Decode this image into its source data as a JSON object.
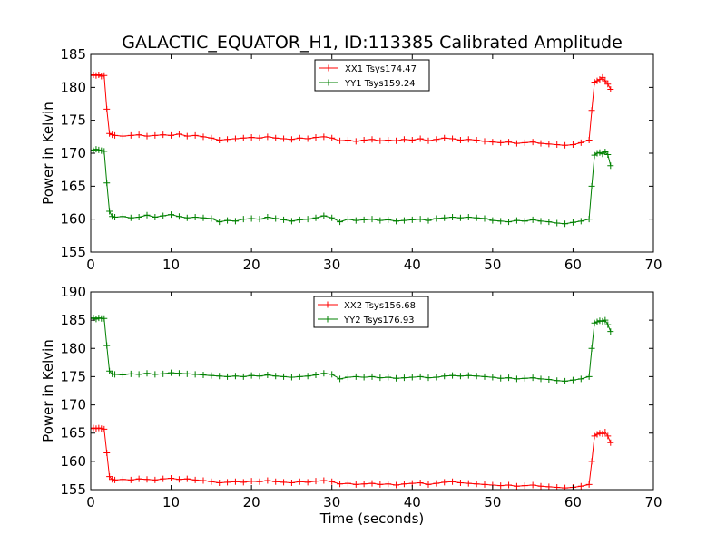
{
  "title": "GALACTIC_EQUATOR_H1, ID:113385 Calibrated Amplitude",
  "chart_data": [
    {
      "type": "line",
      "title": "GALACTIC_EQUATOR_H1, ID:113385 Calibrated Amplitude",
      "xlabel": "",
      "ylabel": "Power in Kelvin",
      "xlim": [
        0,
        70
      ],
      "ylim": [
        155,
        185
      ],
      "xticks": [
        "0",
        "10",
        "20",
        "30",
        "40",
        "50",
        "60",
        "70"
      ],
      "yticks": [
        "155",
        "160",
        "165",
        "170",
        "175",
        "180",
        "185"
      ],
      "grid": false,
      "legend": "top-center",
      "series": [
        {
          "name": "XX1 Tsys174.47",
          "color": "#ff0000",
          "x": [
            0.0,
            0.33,
            0.67,
            1.0,
            1.33,
            1.67,
            2.0,
            2.33,
            2.67,
            3.0,
            4.0,
            5.0,
            6.0,
            7.0,
            8.0,
            9.0,
            10.0,
            11.0,
            12.0,
            13.0,
            14.0,
            15.0,
            16.0,
            17.0,
            18.0,
            19.0,
            20.0,
            21.0,
            22.0,
            23.0,
            24.0,
            25.0,
            26.0,
            27.0,
            28.0,
            29.0,
            30.0,
            31.0,
            32.0,
            33.0,
            34.0,
            35.0,
            36.0,
            37.0,
            38.0,
            39.0,
            40.0,
            41.0,
            42.0,
            43.0,
            44.0,
            45.0,
            46.0,
            47.0,
            48.0,
            49.0,
            50.0,
            51.0,
            52.0,
            53.0,
            54.0,
            55.0,
            56.0,
            57.0,
            58.0,
            59.0,
            60.0,
            61.0,
            62.0,
            62.33,
            62.67,
            63.0,
            63.33,
            63.67,
            64.0,
            64.33,
            64.67
          ],
          "values": [
            181.8,
            181.9,
            181.8,
            181.9,
            181.7,
            181.8,
            176.7,
            173.0,
            172.8,
            172.7,
            172.6,
            172.7,
            172.8,
            172.6,
            172.7,
            172.8,
            172.7,
            172.9,
            172.6,
            172.7,
            172.5,
            172.3,
            172.0,
            172.1,
            172.2,
            172.3,
            172.4,
            172.3,
            172.5,
            172.3,
            172.2,
            172.1,
            172.3,
            172.2,
            172.4,
            172.5,
            172.3,
            171.9,
            172.0,
            171.8,
            172.0,
            172.1,
            171.9,
            172.0,
            171.9,
            172.1,
            172.0,
            172.2,
            171.9,
            172.1,
            172.3,
            172.2,
            172.0,
            172.1,
            172.0,
            171.8,
            171.7,
            171.6,
            171.7,
            171.5,
            171.6,
            171.7,
            171.5,
            171.4,
            171.3,
            171.2,
            171.3,
            171.6,
            172.0,
            176.5,
            180.8,
            181.0,
            181.2,
            181.5,
            181.0,
            180.5,
            179.7
          ]
        },
        {
          "name": "YY1 Tsys159.24",
          "color": "#008000",
          "x": [
            0.0,
            0.33,
            0.67,
            1.0,
            1.33,
            1.67,
            2.0,
            2.33,
            2.67,
            3.0,
            4.0,
            5.0,
            6.0,
            7.0,
            8.0,
            9.0,
            10.0,
            11.0,
            12.0,
            13.0,
            14.0,
            15.0,
            16.0,
            17.0,
            18.0,
            19.0,
            20.0,
            21.0,
            22.0,
            23.0,
            24.0,
            25.0,
            26.0,
            27.0,
            28.0,
            29.0,
            30.0,
            31.0,
            32.0,
            33.0,
            34.0,
            35.0,
            36.0,
            37.0,
            38.0,
            39.0,
            40.0,
            41.0,
            42.0,
            43.0,
            44.0,
            45.0,
            46.0,
            47.0,
            48.0,
            49.0,
            50.0,
            51.0,
            52.0,
            53.0,
            54.0,
            55.0,
            56.0,
            57.0,
            58.0,
            59.0,
            60.0,
            61.0,
            62.0,
            62.33,
            62.67,
            63.0,
            63.33,
            63.67,
            64.0,
            64.33,
            64.67
          ],
          "values": [
            170.5,
            170.4,
            170.6,
            170.5,
            170.4,
            170.3,
            165.5,
            161.2,
            160.4,
            160.3,
            160.4,
            160.2,
            160.3,
            160.6,
            160.3,
            160.5,
            160.7,
            160.4,
            160.2,
            160.3,
            160.2,
            160.1,
            159.6,
            159.8,
            159.7,
            160.0,
            160.1,
            160.0,
            160.3,
            160.1,
            159.9,
            159.7,
            159.9,
            160.0,
            160.2,
            160.5,
            160.2,
            159.6,
            160.0,
            159.8,
            159.9,
            160.0,
            159.8,
            159.9,
            159.7,
            159.8,
            159.9,
            160.0,
            159.8,
            160.1,
            160.2,
            160.3,
            160.2,
            160.3,
            160.2,
            160.1,
            159.8,
            159.7,
            159.6,
            159.8,
            159.7,
            159.9,
            159.7,
            159.6,
            159.4,
            159.3,
            159.5,
            159.7,
            160.0,
            165.0,
            169.7,
            170.0,
            170.1,
            169.9,
            170.2,
            169.8,
            168.1
          ]
        }
      ]
    },
    {
      "type": "line",
      "title": "",
      "xlabel": "Time (seconds)",
      "ylabel": "Power in Kelvin",
      "xlim": [
        0,
        70
      ],
      "ylim": [
        155,
        190
      ],
      "xticks": [
        "0",
        "10",
        "20",
        "30",
        "40",
        "50",
        "60",
        "70"
      ],
      "yticks": [
        "155",
        "160",
        "165",
        "170",
        "175",
        "180",
        "185",
        "190"
      ],
      "grid": false,
      "legend": "top-center",
      "series": [
        {
          "name": "XX2 Tsys156.68",
          "color": "#ff0000",
          "x": [
            0.0,
            0.33,
            0.67,
            1.0,
            1.33,
            1.67,
            2.0,
            2.33,
            2.67,
            3.0,
            4.0,
            5.0,
            6.0,
            7.0,
            8.0,
            9.0,
            10.0,
            11.0,
            12.0,
            13.0,
            14.0,
            15.0,
            16.0,
            17.0,
            18.0,
            19.0,
            20.0,
            21.0,
            22.0,
            23.0,
            24.0,
            25.0,
            26.0,
            27.0,
            28.0,
            29.0,
            30.0,
            31.0,
            32.0,
            33.0,
            34.0,
            35.0,
            36.0,
            37.0,
            38.0,
            39.0,
            40.0,
            41.0,
            42.0,
            43.0,
            44.0,
            45.0,
            46.0,
            47.0,
            48.0,
            49.0,
            50.0,
            51.0,
            52.0,
            53.0,
            54.0,
            55.0,
            56.0,
            57.0,
            58.0,
            59.0,
            60.0,
            61.0,
            62.0,
            62.33,
            62.67,
            63.0,
            63.33,
            63.67,
            64.0,
            64.33,
            64.67
          ],
          "values": [
            165.8,
            165.9,
            165.8,
            165.9,
            165.8,
            165.7,
            161.5,
            157.3,
            156.8,
            156.7,
            156.8,
            156.7,
            156.9,
            156.8,
            156.7,
            156.9,
            157.0,
            156.8,
            156.9,
            156.7,
            156.6,
            156.4,
            156.2,
            156.3,
            156.4,
            156.3,
            156.5,
            156.4,
            156.6,
            156.4,
            156.3,
            156.2,
            156.4,
            156.3,
            156.5,
            156.6,
            156.4,
            156.0,
            156.1,
            155.9,
            156.0,
            156.1,
            155.9,
            156.0,
            155.8,
            156.0,
            156.1,
            156.2,
            155.9,
            156.1,
            156.3,
            156.4,
            156.2,
            156.1,
            156.0,
            155.9,
            155.8,
            155.7,
            155.8,
            155.6,
            155.7,
            155.8,
            155.6,
            155.5,
            155.4,
            155.3,
            155.4,
            155.6,
            155.9,
            160.0,
            164.5,
            164.8,
            165.0,
            164.9,
            165.2,
            164.5,
            163.3
          ]
        },
        {
          "name": "YY2 Tsys176.93",
          "color": "#008000",
          "x": [
            0.0,
            0.33,
            0.67,
            1.0,
            1.33,
            1.67,
            2.0,
            2.33,
            2.67,
            3.0,
            4.0,
            5.0,
            6.0,
            7.0,
            8.0,
            9.0,
            10.0,
            11.0,
            12.0,
            13.0,
            14.0,
            15.0,
            16.0,
            17.0,
            18.0,
            19.0,
            20.0,
            21.0,
            22.0,
            23.0,
            24.0,
            25.0,
            26.0,
            27.0,
            28.0,
            29.0,
            30.0,
            31.0,
            32.0,
            33.0,
            34.0,
            35.0,
            36.0,
            37.0,
            38.0,
            39.0,
            40.0,
            41.0,
            42.0,
            43.0,
            44.0,
            45.0,
            46.0,
            47.0,
            48.0,
            49.0,
            50.0,
            51.0,
            52.0,
            53.0,
            54.0,
            55.0,
            56.0,
            57.0,
            58.0,
            59.0,
            60.0,
            61.0,
            62.0,
            62.33,
            62.67,
            63.0,
            63.33,
            63.67,
            64.0,
            64.33,
            64.67
          ],
          "values": [
            185.3,
            185.4,
            185.2,
            185.4,
            185.3,
            185.3,
            180.5,
            176.0,
            175.5,
            175.4,
            175.3,
            175.5,
            175.4,
            175.6,
            175.4,
            175.5,
            175.7,
            175.6,
            175.5,
            175.4,
            175.3,
            175.2,
            175.1,
            175.0,
            175.1,
            175.0,
            175.2,
            175.1,
            175.3,
            175.1,
            175.0,
            174.9,
            175.0,
            175.1,
            175.3,
            175.6,
            175.4,
            174.6,
            174.9,
            175.0,
            174.9,
            175.0,
            174.8,
            174.9,
            174.7,
            174.8,
            174.9,
            175.0,
            174.8,
            174.9,
            175.1,
            175.2,
            175.1,
            175.2,
            175.1,
            175.0,
            174.9,
            174.7,
            174.8,
            174.6,
            174.7,
            174.8,
            174.6,
            174.5,
            174.3,
            174.2,
            174.4,
            174.6,
            175.0,
            180.0,
            184.5,
            184.7,
            184.9,
            184.8,
            185.0,
            184.2,
            183.0
          ]
        }
      ]
    }
  ]
}
